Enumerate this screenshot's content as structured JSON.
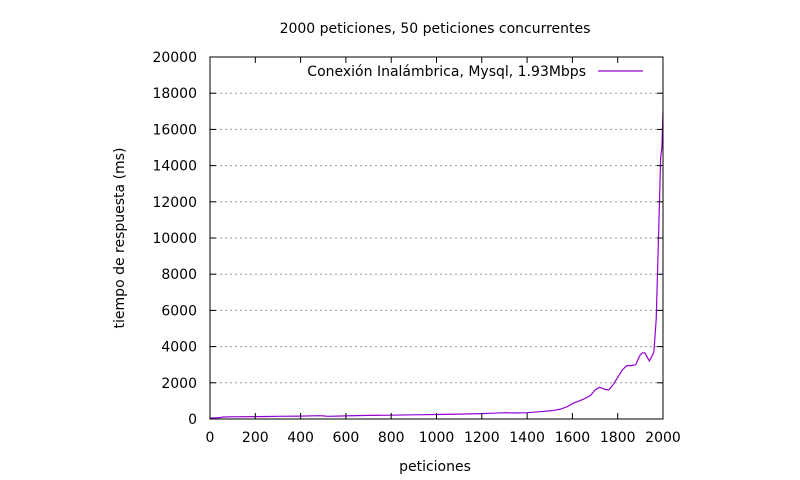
{
  "chart_data": {
    "type": "line",
    "title": "2000 peticiones, 50 peticiones concurrentes",
    "xlabel": "peticiones",
    "ylabel": "tiempo de respuesta (ms)",
    "xlim": [
      0,
      2000
    ],
    "ylim": [
      0,
      20000
    ],
    "xticks": [
      0,
      200,
      400,
      600,
      800,
      1000,
      1200,
      1400,
      1600,
      1800,
      2000
    ],
    "yticks": [
      0,
      2000,
      4000,
      6000,
      8000,
      10000,
      12000,
      14000,
      16000,
      18000,
      20000
    ],
    "grid": "horizontal dotted",
    "legend_position": "top-right",
    "series": [
      {
        "name": "Conexión Inalámbrica, Mysql, 1.93Mbps",
        "color": "#9400d3",
        "x": [
          0,
          20,
          40,
          50,
          60,
          100,
          200,
          250,
          300,
          400,
          480,
          500,
          520,
          560,
          600,
          650,
          700,
          800,
          900,
          950,
          1000,
          1100,
          1200,
          1250,
          1300,
          1320,
          1350,
          1400,
          1450,
          1500,
          1520,
          1550,
          1580,
          1600,
          1620,
          1650,
          1680,
          1700,
          1720,
          1740,
          1760,
          1780,
          1800,
          1820,
          1840,
          1860,
          1880,
          1890,
          1900,
          1910,
          1920,
          1940,
          1960,
          1970,
          1980,
          1990,
          1995,
          2000
        ],
        "y": [
          50,
          60,
          80,
          90,
          110,
          120,
          130,
          140,
          150,
          160,
          180,
          170,
          150,
          160,
          170,
          190,
          200,
          210,
          230,
          240,
          250,
          270,
          300,
          320,
          350,
          340,
          330,
          350,
          400,
          450,
          480,
          550,
          700,
          850,
          950,
          1100,
          1300,
          1600,
          1750,
          1650,
          1600,
          1900,
          2300,
          2700,
          2950,
          2950,
          3000,
          3300,
          3550,
          3650,
          3650,
          3200,
          3700,
          5500,
          10000,
          14500,
          15000,
          17000
        ]
      }
    ]
  }
}
